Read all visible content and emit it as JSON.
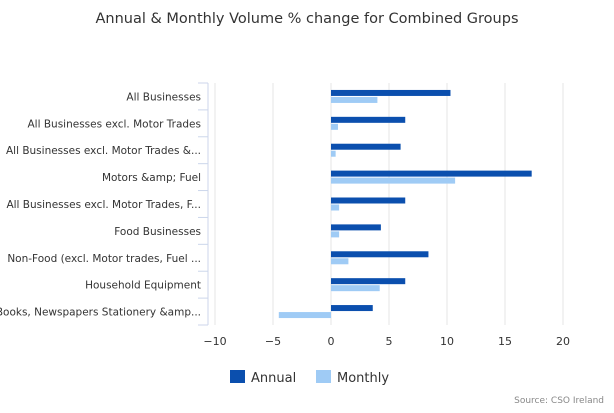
{
  "chart_data": {
    "type": "bar",
    "orientation": "horizontal",
    "title": "Annual & Monthly Volume % change for Combined Groups",
    "categories": [
      "All Businesses",
      "All Businesses excl. Motor Trades",
      "All Businesses excl. Motor Trades &...",
      "Motors &amp; Fuel",
      "All Businesses excl. Motor Trades, F...",
      "Food Businesses",
      "Non-Food (excl. Motor trades, Fuel ...",
      "Household Equipment",
      "Books, Newspapers Stationery &amp..."
    ],
    "series": [
      {
        "name": "Annual",
        "color": "#0b4fae",
        "values": [
          10.3,
          6.4,
          6.0,
          17.3,
          6.4,
          4.3,
          8.4,
          6.4,
          3.6
        ]
      },
      {
        "name": "Monthly",
        "color": "#9fcbf5",
        "values": [
          4.0,
          0.6,
          0.4,
          10.7,
          0.7,
          0.7,
          1.5,
          4.2,
          -4.5
        ]
      }
    ],
    "xlim": [
      -10,
      20
    ],
    "xticks": [
      "−10",
      "−5",
      "0",
      "5",
      "10",
      "15",
      "20"
    ],
    "xtick_values": [
      -10,
      -5,
      0,
      5,
      10,
      15,
      20
    ],
    "grid": true,
    "legend_position": "bottom-center",
    "credits": "Source: CSO Ireland"
  }
}
